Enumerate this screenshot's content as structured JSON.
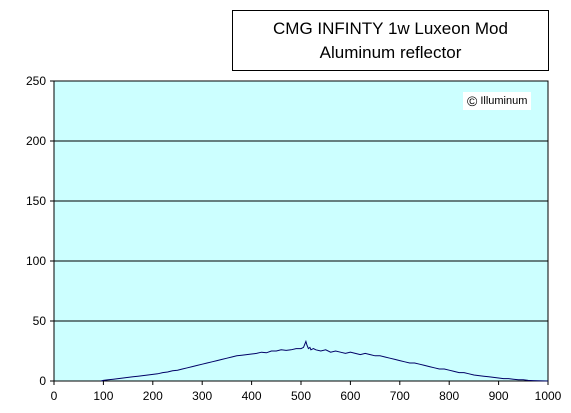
{
  "chart_data": {
    "type": "line",
    "title": [
      "CMG INFINTY 1w Luxeon Mod",
      "Aluminum reflector"
    ],
    "watermark": "Illuminum",
    "xlabel": "",
    "ylabel": "",
    "xlim": [
      0,
      1000
    ],
    "ylim": [
      0,
      250
    ],
    "x_ticks": [
      "0",
      "100",
      "200",
      "300",
      "400",
      "500",
      "600",
      "700",
      "800",
      "900",
      "1000"
    ],
    "y_ticks": [
      "0",
      "50",
      "100",
      "150",
      "200",
      "250"
    ],
    "grid": "horizontal",
    "plot_background": "#ccffff",
    "line_color": "#000066",
    "series": [
      {
        "x": [
          95,
          100,
          110,
          120,
          130,
          140,
          150,
          160,
          170,
          180,
          190,
          200,
          210,
          220,
          230,
          240,
          250,
          260,
          270,
          280,
          290,
          300,
          310,
          320,
          330,
          340,
          350,
          360,
          370,
          380,
          390,
          400,
          410,
          420,
          430,
          440,
          450,
          460,
          470,
          480,
          490,
          500,
          505,
          510,
          512,
          515,
          518,
          520,
          525,
          530,
          540,
          550,
          560,
          570,
          580,
          590,
          600,
          610,
          620,
          630,
          640,
          650,
          660,
          670,
          680,
          690,
          700,
          710,
          720,
          730,
          740,
          750,
          760,
          770,
          780,
          790,
          800,
          810,
          820,
          830,
          840,
          850,
          860,
          870,
          880,
          890,
          900,
          910,
          920,
          930,
          940,
          950,
          960,
          970,
          980,
          990,
          1000
        ],
        "y": [
          0,
          0.5,
          1,
          1.5,
          2,
          2.5,
          3,
          3.5,
          4,
          4.5,
          5,
          5.5,
          6,
          7,
          7.5,
          8.5,
          9,
          10,
          11,
          12,
          13,
          14,
          15,
          16,
          17,
          18,
          19,
          20,
          21,
          21.5,
          22,
          22.5,
          23,
          24,
          23.5,
          25,
          25,
          26,
          25.5,
          26,
          27,
          27,
          28,
          33,
          30,
          27,
          28,
          26,
          27,
          26,
          25,
          26,
          24,
          25,
          24,
          23,
          24,
          23,
          22,
          23,
          22,
          21,
          21,
          20,
          19,
          18,
          17,
          16,
          15,
          15,
          14,
          13,
          12,
          11,
          10,
          10,
          9,
          8,
          7,
          7,
          6,
          5,
          4.5,
          4,
          3.5,
          3,
          2.5,
          2,
          2,
          1.5,
          1,
          1,
          0.5,
          0.3,
          0.2,
          0.1,
          0
        ]
      }
    ]
  }
}
